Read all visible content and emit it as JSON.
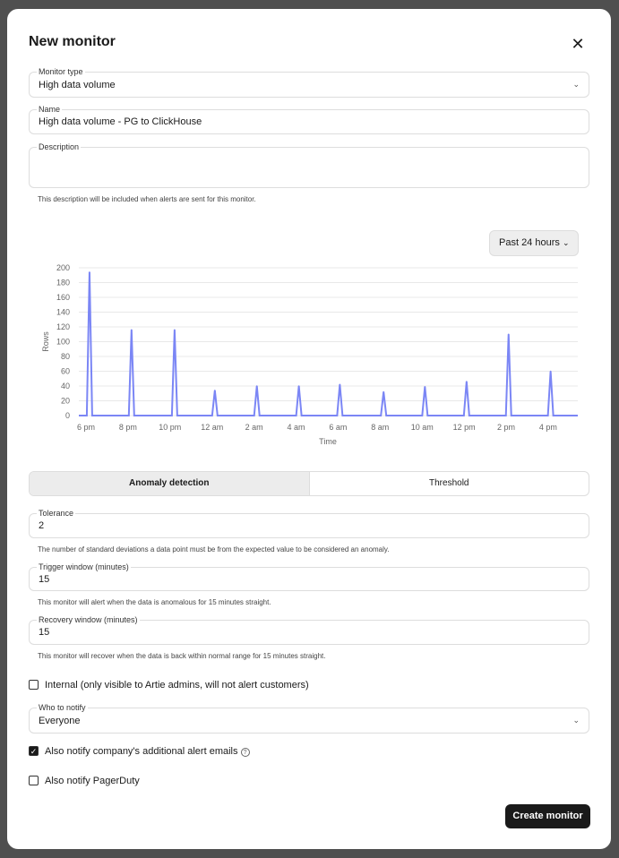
{
  "modal": {
    "title": "New monitor",
    "close_icon": "close-icon"
  },
  "monitor_type": {
    "label": "Monitor type",
    "value": "High data volume"
  },
  "name": {
    "label": "Name",
    "value": "High data volume - PG to ClickHouse"
  },
  "description": {
    "label": "Description",
    "value": "",
    "help": "This description will be included when alerts are sent for this monitor."
  },
  "range_select": {
    "value": "Past 24 hours"
  },
  "chart_data": {
    "type": "line",
    "xlabel": "Time",
    "ylabel": "Rows",
    "ylim": [
      0,
      200
    ],
    "grid": true,
    "color": "#7b86f5",
    "yticks": [
      "0",
      "20",
      "40",
      "60",
      "80",
      "100",
      "120",
      "140",
      "160",
      "180",
      "200"
    ],
    "xticks": [
      "6 pm",
      "8 pm",
      "10 pm",
      "12 am",
      "2 am",
      "4 am",
      "6 am",
      "8 am",
      "10 am",
      "12 pm",
      "2 pm",
      "4 pm"
    ],
    "peaks": [
      {
        "x": "18:10",
        "y": 194
      },
      {
        "x": "20:10",
        "y": 116
      },
      {
        "x": "22:13",
        "y": 116
      },
      {
        "x": "00:08",
        "y": 34
      },
      {
        "x": "02:08",
        "y": 40
      },
      {
        "x": "04:08",
        "y": 40
      },
      {
        "x": "06:05",
        "y": 42
      },
      {
        "x": "08:10",
        "y": 32
      },
      {
        "x": "10:08",
        "y": 39
      },
      {
        "x": "12:07",
        "y": 46
      },
      {
        "x": "14:07",
        "y": 110
      },
      {
        "x": "16:07",
        "y": 60
      }
    ],
    "baseline": 0
  },
  "tabs": [
    {
      "label": "Anomaly detection",
      "active": true
    },
    {
      "label": "Threshold",
      "active": false
    }
  ],
  "tolerance": {
    "label": "Tolerance",
    "value": "2",
    "help": "The number of standard deviations a data point must be from the expected value to be considered an anomaly."
  },
  "trigger": {
    "label": "Trigger window (minutes)",
    "value": "15",
    "help": "This monitor will alert when the data is anomalous for 15 minutes straight."
  },
  "recovery": {
    "label": "Recovery window (minutes)",
    "value": "15",
    "help": "This monitor will recover when the data is back within normal range for 15 minutes straight."
  },
  "internal": {
    "label": "Internal (only visible to Artie admins, will not alert customers)",
    "checked": false
  },
  "notify": {
    "label": "Who to notify",
    "value": "Everyone"
  },
  "alert_emails": {
    "label": "Also notify company's additional alert emails",
    "checked": true
  },
  "pagerduty": {
    "label": "Also notify PagerDuty",
    "checked": false
  },
  "submit": {
    "label": "Create monitor"
  }
}
